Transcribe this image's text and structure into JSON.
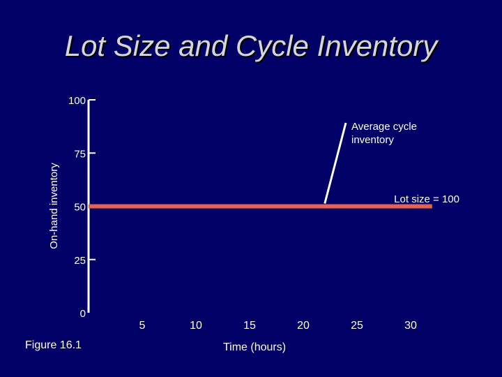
{
  "slide": {
    "title": "Lot Size and Cycle Inventory",
    "figure_label": "Figure 16.1",
    "background_color": "#000066",
    "title_color": "#d6d6d6"
  },
  "chart_data": {
    "type": "line",
    "title": "",
    "xlabel": "Time (hours)",
    "ylabel": "On-hand inventory",
    "x_ticks": [
      5,
      10,
      15,
      20,
      25,
      30
    ],
    "y_ticks": [
      0,
      25,
      50,
      75,
      100
    ],
    "xlim": [
      0,
      32
    ],
    "ylim": [
      0,
      100
    ],
    "grid": false,
    "series": [
      {
        "values": [
          {
            "x": 0,
            "y": 50
          },
          {
            "x": 32,
            "y": 50
          }
        ],
        "color": "#e8614f"
      }
    ],
    "annotations": [
      {
        "text": "Average cycle inventory",
        "points_to": {
          "x": 22,
          "y": 50
        }
      },
      {
        "text": "Lot size = 100"
      }
    ]
  }
}
